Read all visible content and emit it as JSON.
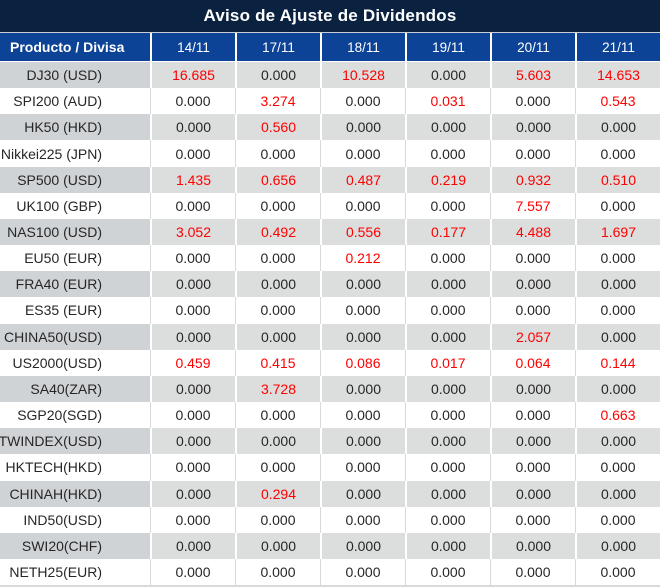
{
  "title": "Aviso de Ajuste de Dividendos",
  "chart_data": {
    "type": "table",
    "title": "Aviso de Ajuste de Dividendos",
    "product_header": "Producto / Divisa",
    "date_columns": [
      "14/11",
      "17/11",
      "18/11",
      "19/11",
      "20/11",
      "21/11"
    ],
    "rows": [
      {
        "product": "DJ30 (USD)",
        "values": [
          "16.685",
          "0.000",
          "10.528",
          "0.000",
          "5.603",
          "14.653"
        ]
      },
      {
        "product": "SPI200 (AUD)",
        "values": [
          "0.000",
          "3.274",
          "0.000",
          "0.031",
          "0.000",
          "0.543"
        ]
      },
      {
        "product": "HK50 (HKD)",
        "values": [
          "0.000",
          "0.560",
          "0.000",
          "0.000",
          "0.000",
          "0.000"
        ]
      },
      {
        "product": "Nikkei225 (JPN)",
        "values": [
          "0.000",
          "0.000",
          "0.000",
          "0.000",
          "0.000",
          "0.000"
        ]
      },
      {
        "product": "SP500 (USD)",
        "values": [
          "1.435",
          "0.656",
          "0.487",
          "0.219",
          "0.932",
          "0.510"
        ]
      },
      {
        "product": "UK100 (GBP)",
        "values": [
          "0.000",
          "0.000",
          "0.000",
          "0.000",
          "7.557",
          "0.000"
        ]
      },
      {
        "product": "NAS100 (USD)",
        "values": [
          "3.052",
          "0.492",
          "0.556",
          "0.177",
          "4.488",
          "1.697"
        ]
      },
      {
        "product": "EU50 (EUR)",
        "values": [
          "0.000",
          "0.000",
          "0.212",
          "0.000",
          "0.000",
          "0.000"
        ]
      },
      {
        "product": "FRA40 (EUR)",
        "values": [
          "0.000",
          "0.000",
          "0.000",
          "0.000",
          "0.000",
          "0.000"
        ]
      },
      {
        "product": "ES35 (EUR)",
        "values": [
          "0.000",
          "0.000",
          "0.000",
          "0.000",
          "0.000",
          "0.000"
        ]
      },
      {
        "product": "CHINA50(USD)",
        "values": [
          "0.000",
          "0.000",
          "0.000",
          "0.000",
          "2.057",
          "0.000"
        ]
      },
      {
        "product": "US2000(USD)",
        "values": [
          "0.459",
          "0.415",
          "0.086",
          "0.017",
          "0.064",
          "0.144"
        ]
      },
      {
        "product": "SA40(ZAR)",
        "values": [
          "0.000",
          "3.728",
          "0.000",
          "0.000",
          "0.000",
          "0.000"
        ]
      },
      {
        "product": "SGP20(SGD)",
        "values": [
          "0.000",
          "0.000",
          "0.000",
          "0.000",
          "0.000",
          "0.663"
        ]
      },
      {
        "product": "TWINDEX(USD)",
        "values": [
          "0.000",
          "0.000",
          "0.000",
          "0.000",
          "0.000",
          "0.000"
        ]
      },
      {
        "product": "HKTECH(HKD)",
        "values": [
          "0.000",
          "0.000",
          "0.000",
          "0.000",
          "0.000",
          "0.000"
        ]
      },
      {
        "product": "CHINAH(HKD)",
        "values": [
          "0.000",
          "0.294",
          "0.000",
          "0.000",
          "0.000",
          "0.000"
        ]
      },
      {
        "product": "IND50(USD)",
        "values": [
          "0.000",
          "0.000",
          "0.000",
          "0.000",
          "0.000",
          "0.000"
        ]
      },
      {
        "product": "SWI20(CHF)",
        "values": [
          "0.000",
          "0.000",
          "0.000",
          "0.000",
          "0.000",
          "0.000"
        ]
      },
      {
        "product": "NETH25(EUR)",
        "values": [
          "0.000",
          "0.000",
          "0.000",
          "0.000",
          "0.000",
          "0.000"
        ]
      }
    ],
    "zero_value_display": "0.000",
    "layout": {
      "striped": true,
      "nonzero_values_highlighted": true
    }
  },
  "colors": {
    "title_bar_bg": "#0a2240",
    "header_bg": "#0d4396",
    "header_text": "#ffffff",
    "header_divider": "#ffffff",
    "row_stripe_bg": "#dcdddd",
    "row_stripe_product_bg": "#d0d3d6",
    "row_white_bg": "#ffffff",
    "white_row_divider": "#d9d9d9",
    "bottom_border": "#d9d9d9",
    "text_dark": "#262626",
    "text_red": "#ff0000"
  }
}
